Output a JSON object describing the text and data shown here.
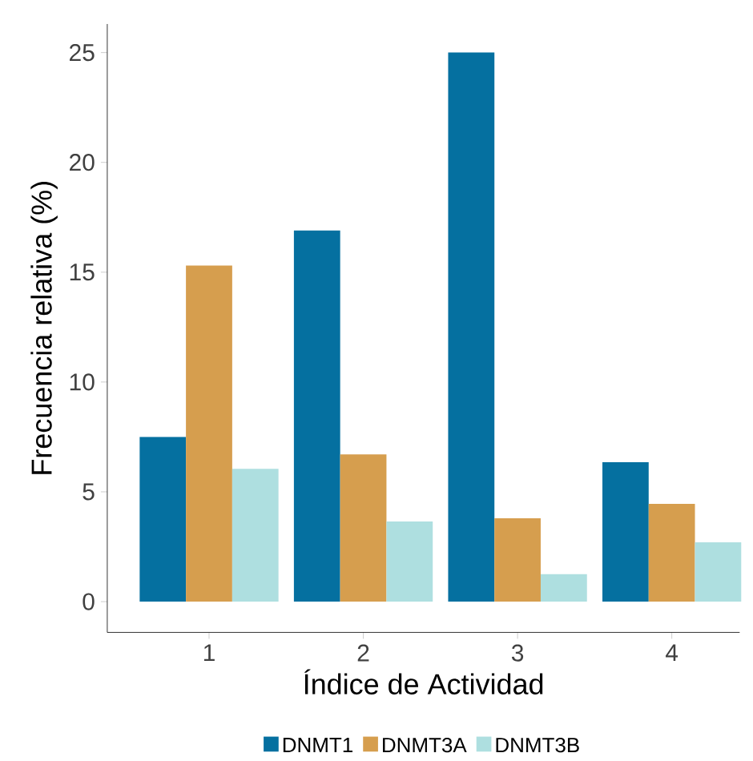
{
  "chart_data": {
    "type": "bar",
    "xlabel": "Índice de Actividad",
    "ylabel": "Frecuencia relativa (%)",
    "categories": [
      "1",
      "2",
      "3",
      "4"
    ],
    "series": [
      {
        "name": "DNMT1",
        "color": "#0570a0",
        "values": [
          7.5,
          16.9,
          25.0,
          6.35
        ]
      },
      {
        "name": "DNMT3A",
        "color": "#d69e4e",
        "values": [
          15.3,
          6.7,
          3.8,
          4.45
        ]
      },
      {
        "name": "DNMT3B",
        "color": "#aedfe0",
        "values": [
          6.05,
          3.65,
          1.25,
          2.7
        ]
      }
    ],
    "ylim": [
      -1.4,
      26.3
    ],
    "yticks": [
      0,
      5,
      10,
      15,
      20,
      25
    ],
    "grid": false,
    "legend": "bottom"
  }
}
